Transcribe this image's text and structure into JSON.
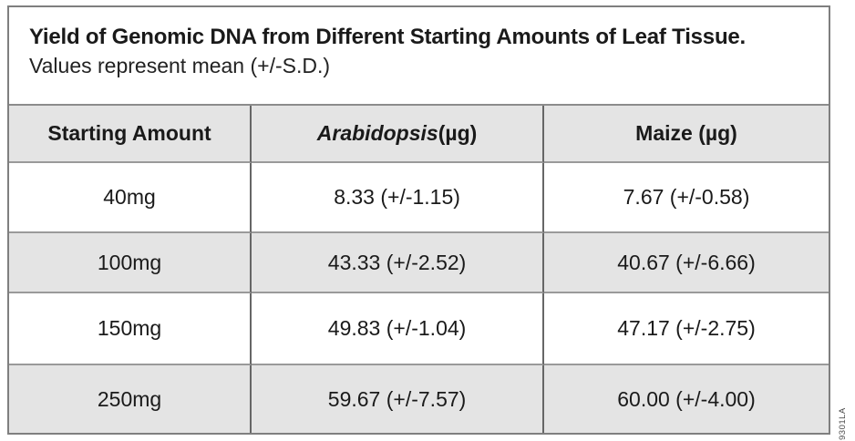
{
  "figure": {
    "title": "Yield of Genomic DNA from Different Starting Amounts of Leaf Tissue.",
    "subtitle": "Values represent mean (+/-S.D.)",
    "code": "9301LA"
  },
  "table": {
    "headers": {
      "starting_amount": "Starting Amount",
      "arabidopsis_genus": "Arabidopsis",
      "arabidopsis_unit": " (µg)",
      "maize": "Maize (µg)"
    },
    "rows": [
      {
        "amount": "40mg",
        "arabidopsis": "8.33 (+/-1.15)",
        "maize": "7.67 (+/-0.58)"
      },
      {
        "amount": "100mg",
        "arabidopsis": "43.33 (+/-2.52)",
        "maize": "40.67 (+/-6.66)"
      },
      {
        "amount": "150mg",
        "arabidopsis": "49.83 (+/-1.04)",
        "maize": "47.17 (+/-2.75)"
      },
      {
        "amount": "250mg",
        "arabidopsis": "59.67 (+/-7.57)",
        "maize": "60.00 (+/-4.00)"
      }
    ]
  },
  "colors": {
    "row_shade": "#e4e4e4",
    "outer_border": "#7f7f7f",
    "divider_vertical": "#666666",
    "divider_horizontal": "#9a9a9a",
    "text": "#1a1a1a"
  }
}
